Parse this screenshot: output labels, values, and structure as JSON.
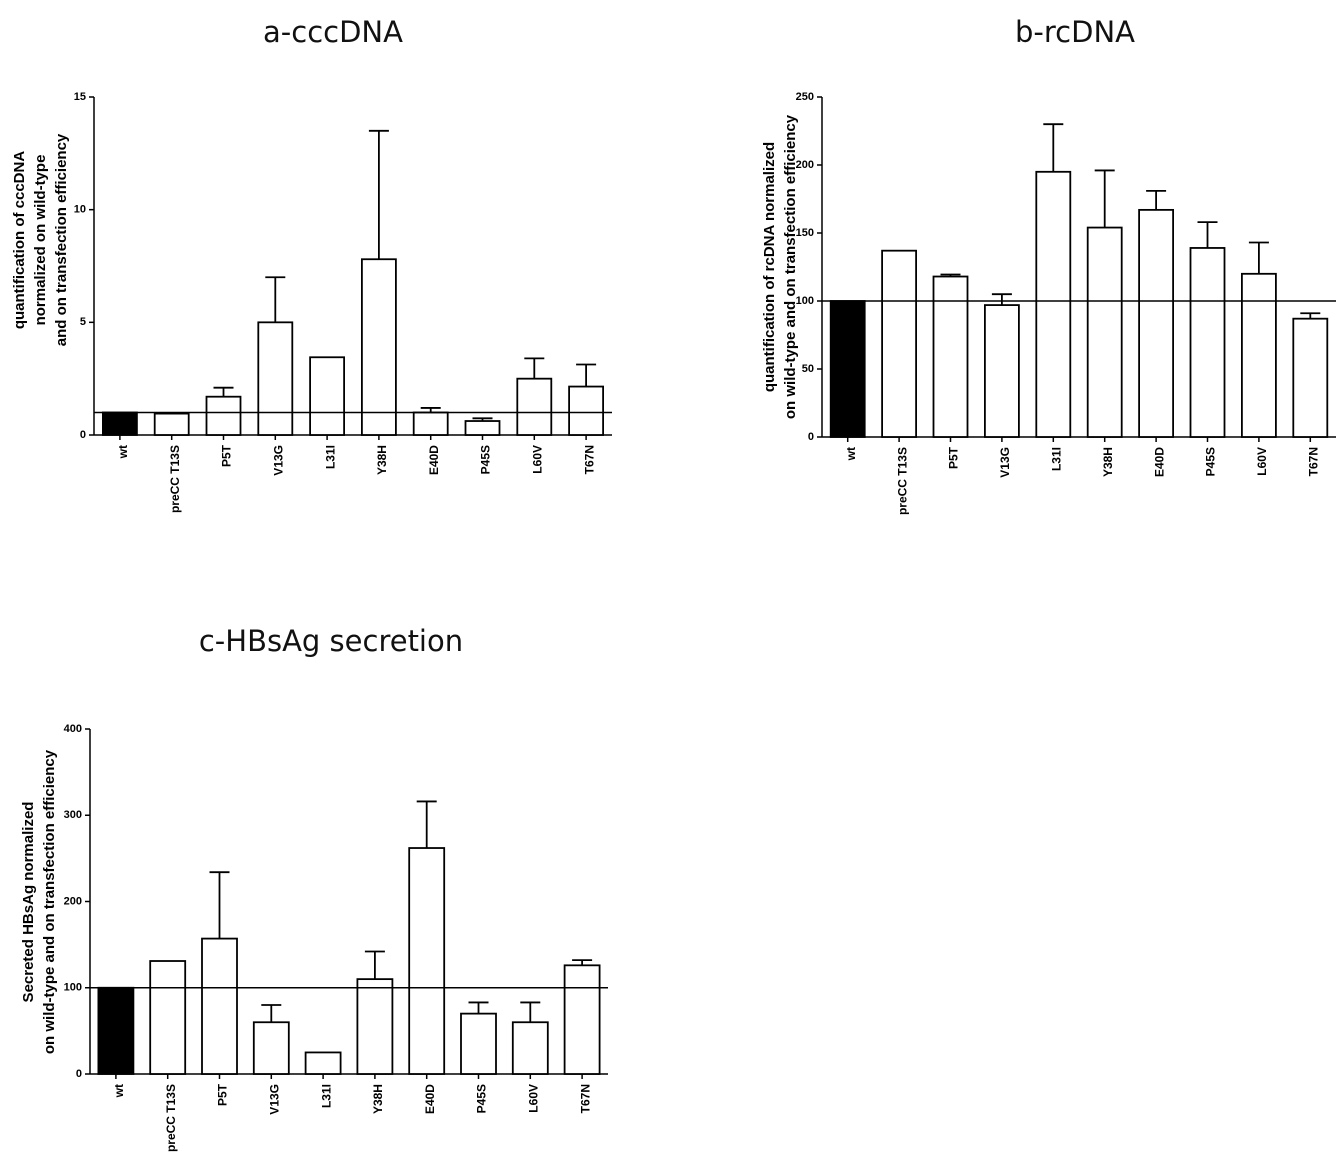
{
  "chart_data": [
    {
      "type": "bar",
      "title": "a-cccDNA",
      "ylabel": [
        "quantification of cccDNA",
        "normalized on wild-type",
        "and on transfection efficiency"
      ],
      "categories": [
        "wt",
        "preCC T13S",
        "P5T",
        "V13G",
        "L31I",
        "Y38H",
        "E40D",
        "P45S",
        "L60V",
        "T67N"
      ],
      "values": [
        1.0,
        0.95,
        1.7,
        5.0,
        3.45,
        7.8,
        1.0,
        0.62,
        2.5,
        2.15
      ],
      "errors": [
        0,
        0,
        0.4,
        2.0,
        0,
        5.7,
        0.2,
        0.12,
        0.9,
        0.98
      ],
      "reference_line": 1,
      "ylim": [
        0,
        15
      ],
      "yticks": [
        0,
        5,
        10,
        15
      ],
      "fill_colors": [
        "#000000",
        "#ffffff",
        "#ffffff",
        "#ffffff",
        "#ffffff",
        "#ffffff",
        "#ffffff",
        "#ffffff",
        "#ffffff",
        "#ffffff"
      ],
      "grid": false,
      "legend": "none"
    },
    {
      "type": "bar",
      "title": "b-rcDNA",
      "ylabel": [
        "quantification of rcDNA normalized",
        "on wild-type and on transfection efficiency"
      ],
      "categories": [
        "wt",
        "preCC T13S",
        "P5T",
        "V13G",
        "L31I",
        "Y38H",
        "E40D",
        "P45S",
        "L60V",
        "T67N"
      ],
      "values": [
        100,
        137,
        118,
        97,
        195,
        154,
        167,
        139,
        120,
        87
      ],
      "errors": [
        0,
        0,
        1.5,
        8,
        35,
        42,
        14,
        19,
        23,
        4
      ],
      "reference_line": 100,
      "ylim": [
        0,
        250
      ],
      "yticks": [
        0,
        50,
        100,
        150,
        200,
        250
      ],
      "fill_colors": [
        "#000000",
        "#ffffff",
        "#ffffff",
        "#ffffff",
        "#ffffff",
        "#ffffff",
        "#ffffff",
        "#ffffff",
        "#ffffff",
        "#ffffff"
      ],
      "grid": false,
      "legend": "none"
    },
    {
      "type": "bar",
      "title": "c-HBsAg secretion",
      "ylabel": [
        "Secreted HBsAg normalized",
        "on wild-type and on transfection efficiency"
      ],
      "categories": [
        "wt",
        "preCC T13S",
        "P5T",
        "V13G",
        "L31I",
        "Y38H",
        "E40D",
        "P45S",
        "L60V",
        "T67N"
      ],
      "values": [
        100,
        131,
        157,
        60,
        25,
        110,
        262,
        70,
        60,
        126
      ],
      "errors": [
        0,
        0,
        77,
        20,
        0,
        32,
        54,
        13,
        23,
        6
      ],
      "reference_line": 100,
      "ylim": [
        0,
        400
      ],
      "yticks": [
        0,
        100,
        200,
        300,
        400
      ],
      "fill_colors": [
        "#000000",
        "#ffffff",
        "#ffffff",
        "#ffffff",
        "#ffffff",
        "#ffffff",
        "#ffffff",
        "#ffffff",
        "#ffffff",
        "#ffffff"
      ],
      "grid": false,
      "legend": "none"
    }
  ]
}
